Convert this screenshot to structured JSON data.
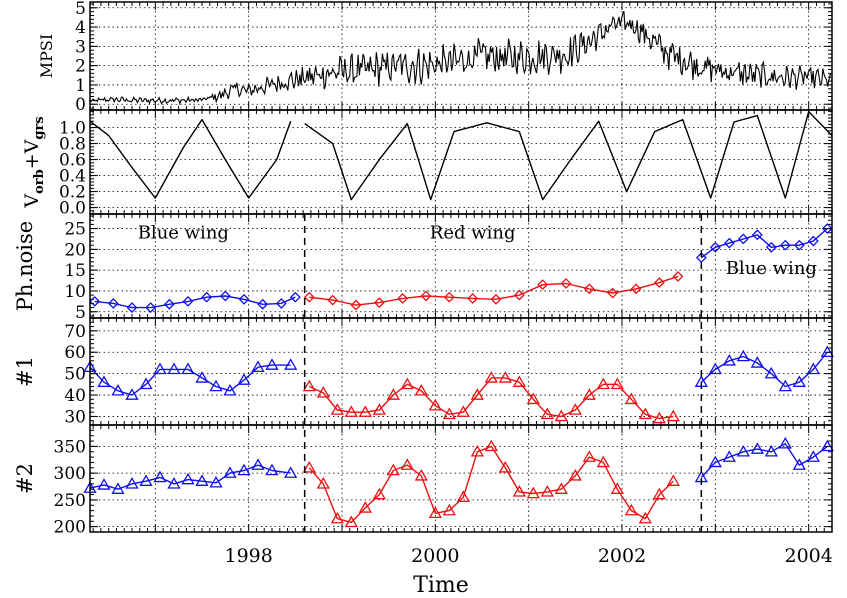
{
  "chart_data": {
    "type": "line",
    "xlabel": "Time",
    "xlim": [
      1996.3,
      2004.25
    ],
    "xticks": [
      1998,
      2000,
      2002,
      2004
    ],
    "xgrid_minor": [
      1997,
      1998,
      1999,
      2000,
      2001,
      2002,
      2003,
      2004
    ],
    "grid": true,
    "colors": {
      "blue": "#1010ee",
      "red": "#ee1010",
      "black": "#000000"
    },
    "wing_separators": [
      1998.6,
      2002.85
    ],
    "panels": [
      {
        "id": "mpsi",
        "ylabel": "MPSI",
        "ylim": [
          -0.3,
          5.3
        ],
        "yticks": [
          0,
          1,
          2,
          3,
          4,
          5
        ],
        "ytick_labels": [
          "0",
          "1",
          "2",
          "3",
          "4",
          "5"
        ],
        "series": [
          {
            "color": "black",
            "marker": "none",
            "x": [
              1996.3,
              1996.5,
              1996.8,
              1997.0,
              1997.3,
              1997.5,
              1997.7,
              1997.85,
              1998.0,
              1998.2,
              1998.4,
              1998.6,
              1998.8,
              1999.0,
              1999.3,
              1999.6,
              1999.9,
              2000.2,
              2000.5,
              2000.8,
              2001.1,
              2001.4,
              2001.7,
              2001.9,
              2002.1,
              2002.3,
              2002.5,
              2002.8,
              2003.1,
              2003.4,
              2003.7,
              2004.0,
              2004.25
            ],
            "y": [
              0.15,
              0.25,
              0.2,
              0.2,
              0.2,
              0.22,
              0.45,
              0.8,
              0.7,
              0.95,
              1.2,
              1.35,
              1.55,
              1.7,
              1.8,
              2.0,
              2.0,
              2.2,
              2.5,
              2.4,
              2.5,
              2.6,
              3.4,
              4.1,
              4.2,
              3.4,
              2.6,
              2.0,
              1.7,
              1.5,
              1.4,
              1.4,
              1.2
            ],
            "noise": [
              0.1,
              0.12,
              0.12,
              0.12,
              0.12,
              0.12,
              0.25,
              0.3,
              0.25,
              0.35,
              0.45,
              0.55,
              0.6,
              0.65,
              0.7,
              0.75,
              0.75,
              0.75,
              0.75,
              0.75,
              0.75,
              0.75,
              0.6,
              0.5,
              0.5,
              0.55,
              0.65,
              0.6,
              0.55,
              0.55,
              0.5,
              0.45,
              0.45
            ]
          }
        ]
      },
      {
        "id": "vorb",
        "ylabel": "Vorb+Vgrs",
        "ylabel_parts": {
          "v1": "V",
          "sub1": "orb",
          "plus": "+V",
          "sub2": "grs"
        },
        "ylim": [
          -0.08,
          1.22
        ],
        "yticks": [
          0.0,
          0.2,
          0.4,
          0.6,
          0.8,
          1.0
        ],
        "ytick_labels": [
          "0.0",
          "0.2",
          "0.4",
          "0.6",
          "0.8",
          "1.0"
        ],
        "series": [
          {
            "color": "black",
            "marker": "none",
            "x": [
              1996.3,
              1996.5,
              1996.75,
              1997.0,
              1997.3,
              1997.5,
              1997.75,
              1998.0,
              1998.3,
              1998.45,
              1998.6,
              1998.9,
              1999.1,
              1999.4,
              1999.7,
              1999.95,
              2000.2,
              2000.55,
              2000.9,
              2001.15,
              2001.45,
              2001.75,
              2002.05,
              2002.35,
              2002.65,
              2002.95,
              2003.2,
              2003.45,
              2003.75,
              2004.0,
              2004.25
            ],
            "y": [
              1.08,
              0.9,
              0.5,
              0.12,
              0.75,
              1.1,
              0.6,
              0.12,
              0.6,
              1.08,
              1.05,
              0.8,
              0.1,
              0.6,
              1.05,
              0.1,
              0.95,
              1.06,
              0.95,
              0.1,
              0.6,
              1.08,
              0.2,
              0.95,
              1.1,
              0.12,
              1.07,
              1.15,
              0.12,
              1.2,
              0.9
            ],
            "gaps_after_x": [
              1998.45
            ]
          }
        ]
      },
      {
        "id": "phnoise",
        "ylabel": "Ph.noise",
        "ylim": [
          3.5,
          28.5
        ],
        "yticks": [
          5,
          10,
          15,
          20,
          25
        ],
        "ytick_labels": [
          "5",
          "10",
          "15",
          "20",
          "25"
        ],
        "annotations": [
          {
            "text": "Blue wing",
            "x": 1997.3,
            "y": 24.0,
            "color": "blue"
          },
          {
            "text": "Red wing",
            "x": 2000.4,
            "y": 24.0,
            "color": "red"
          },
          {
            "text": "Blue wing",
            "x": 2003.6,
            "y": 15.5,
            "color": "blue"
          }
        ],
        "series": [
          {
            "color": "blue",
            "marker": "diamond",
            "x": [
              1996.35,
              1996.55,
              1996.75,
              1996.95,
              1997.15,
              1997.35,
              1997.55,
              1997.75,
              1997.95,
              1998.15,
              1998.35,
              1998.5
            ],
            "y": [
              7.5,
              7.0,
              6.0,
              6.0,
              6.8,
              7.5,
              8.5,
              8.8,
              8.0,
              6.8,
              7.0,
              8.5
            ]
          },
          {
            "color": "red",
            "marker": "diamond",
            "x": [
              1998.65,
              1998.9,
              1999.15,
              1999.4,
              1999.65,
              1999.9,
              2000.15,
              2000.4,
              2000.65,
              2000.9,
              2001.15,
              2001.4,
              2001.65,
              2001.9,
              2002.15,
              2002.4,
              2002.6
            ],
            "y": [
              8.5,
              7.8,
              6.6,
              7.2,
              8.2,
              8.8,
              8.5,
              8.2,
              8.0,
              9.0,
              11.5,
              11.8,
              10.5,
              9.5,
              10.5,
              12.0,
              13.5
            ],
            "points_note": ""
          },
          {
            "color": "blue",
            "marker": "diamond",
            "x": [
              2002.85,
              2003.0,
              2003.15,
              2003.3,
              2003.45,
              2003.6,
              2003.75,
              2003.9,
              2004.05,
              2004.2
            ],
            "y": [
              18.0,
              20.5,
              21.5,
              22.5,
              23.5,
              20.5,
              21.0,
              21.0,
              22.0,
              25.0
            ]
          }
        ]
      },
      {
        "id": "n1",
        "ylabel": "#1",
        "ylim": [
          26,
          76
        ],
        "yticks": [
          30,
          40,
          50,
          60,
          70
        ],
        "ytick_labels": [
          "30",
          "40",
          "50",
          "60",
          "70"
        ],
        "series": [
          {
            "color": "blue",
            "marker": "triangle",
            "x": [
              1996.3,
              1996.45,
              1996.6,
              1996.75,
              1996.9,
              1997.05,
              1997.2,
              1997.35,
              1997.5,
              1997.65,
              1997.8,
              1997.95,
              1998.1,
              1998.25,
              1998.45
            ],
            "y": [
              53,
              46,
              42,
              40,
              45,
              52,
              52,
              52,
              48,
              44,
              42,
              47,
              53,
              54,
              54
            ]
          },
          {
            "color": "red",
            "marker": "triangle",
            "x": [
              1998.65,
              1998.8,
              1998.95,
              1999.1,
              1999.25,
              1999.4,
              1999.55,
              1999.7,
              1999.85,
              2000.0,
              2000.15,
              2000.3,
              2000.45,
              2000.6,
              2000.75,
              2000.9,
              2001.05,
              2001.2,
              2001.35,
              2001.5,
              2001.65,
              2001.8,
              2001.95,
              2002.1,
              2002.25,
              2002.4,
              2002.55
            ],
            "y": [
              44,
              41,
              33,
              32,
              32,
              33,
              40,
              45,
              42,
              35,
              31,
              32,
              40,
              48,
              48,
              46,
              38,
              31,
              30,
              33,
              40,
              45,
              45,
              38,
              31,
              29,
              30
            ]
          },
          {
            "color": "blue",
            "marker": "triangle",
            "x": [
              2002.85,
              2003.0,
              2003.15,
              2003.3,
              2003.45,
              2003.6,
              2003.75,
              2003.9,
              2004.05,
              2004.2
            ],
            "y": [
              46,
              52,
              56,
              58,
              55,
              50,
              44,
              46,
              52,
              60
            ]
          }
        ]
      },
      {
        "id": "n2",
        "ylabel": "#2",
        "ylim": [
          190,
          390
        ],
        "yticks": [
          200,
          250,
          300,
          350
        ],
        "ytick_labels": [
          "200",
          "250",
          "300",
          "350"
        ],
        "series": [
          {
            "color": "blue",
            "marker": "triangle",
            "x": [
              1996.3,
              1996.45,
              1996.6,
              1996.75,
              1996.9,
              1997.05,
              1997.2,
              1997.35,
              1997.5,
              1997.65,
              1997.8,
              1997.95,
              1998.1,
              1998.25,
              1998.45
            ],
            "y": [
              272,
              278,
              270,
              280,
              285,
              292,
              280,
              288,
              285,
              282,
              300,
              305,
              315,
              305,
              300
            ]
          },
          {
            "color": "red",
            "marker": "triangle",
            "x": [
              1998.65,
              1998.8,
              1998.95,
              1999.1,
              1999.25,
              1999.4,
              1999.55,
              1999.7,
              1999.85,
              2000.0,
              2000.15,
              2000.3,
              2000.45,
              2000.6,
              2000.75,
              2000.9,
              2001.05,
              2001.2,
              2001.35,
              2001.5,
              2001.65,
              2001.8,
              2001.95,
              2002.1,
              2002.25,
              2002.4,
              2002.55
            ],
            "y": [
              310,
              280,
              215,
              208,
              235,
              260,
              305,
              315,
              295,
              225,
              230,
              255,
              340,
              350,
              310,
              265,
              262,
              265,
              270,
              295,
              330,
              320,
              270,
              230,
              215,
              260,
              285
            ]
          },
          {
            "color": "blue",
            "marker": "triangle",
            "x": [
              2002.85,
              2003.0,
              2003.15,
              2003.3,
              2003.45,
              2003.6,
              2003.75,
              2003.9,
              2004.05,
              2004.2
            ],
            "y": [
              292,
              320,
              330,
              340,
              345,
              340,
              355,
              315,
              330,
              350
            ]
          }
        ]
      }
    ]
  }
}
